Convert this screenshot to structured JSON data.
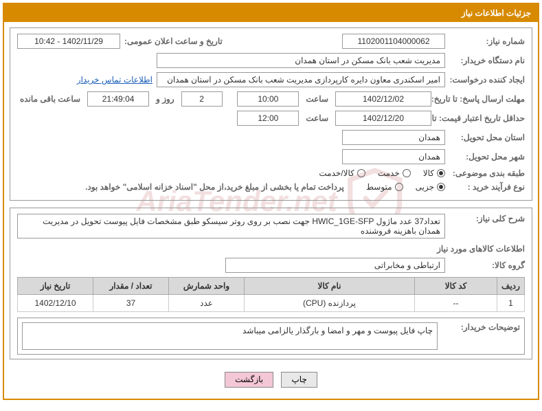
{
  "header": {
    "title": "جزئیات اطلاعات نیاز"
  },
  "fields": {
    "need_number_label": "شماره نیاز:",
    "need_number": "1102001104000062",
    "announce_datetime_label": "تاریخ و ساعت اعلان عمومی:",
    "announce_datetime": "1402/11/29 - 10:42",
    "buyer_org_label": "نام دستگاه خریدار:",
    "buyer_org": "مدیریت شعب بانک مسکن در استان همدان",
    "creator_label": "ایجاد کننده درخواست:",
    "creator": "امیر اسکندری معاون دایره کارپردازی مدیریت شعب بانک مسکن در استان همدان",
    "buyer_contact_link": "اطلاعات تماس خریدار",
    "response_deadline_label": "مهلت ارسال پاسخ: تا تاریخ:",
    "response_date": "1402/12/02",
    "saat_label": "ساعت",
    "response_time": "10:00",
    "days_count": "2",
    "rooz_va_label": "روز و",
    "remaining_time": "21:49:04",
    "remaining_label": "ساعت باقی مانده",
    "price_validity_label": "حداقل تاریخ اعتبار قیمت: تا تاریخ:",
    "price_validity_date": "1402/12/20",
    "price_validity_time": "12:00",
    "delivery_province_label": "استان محل تحویل:",
    "delivery_province": "همدان",
    "delivery_city_label": "شهر محل تحویل:",
    "delivery_city": "همدان",
    "category_label": "طبقه بندی موضوعی:",
    "cat_kala": "کالا",
    "cat_khadamat": "خدمت",
    "cat_kala_khadamat": "کالا/خدمت",
    "process_type_label": "نوع فرآیند خرید :",
    "pt_jozee": "جزیی",
    "pt_motavaset": "متوسط",
    "payment_note": "پرداخت تمام یا بخشی از مبلغ خرید،از محل \"اسناد خزانه اسلامی\" خواهد بود.",
    "summary_label": "شرح کلی نیاز:",
    "summary": "تعداد37 عدد ماژول HWIC_1GE-SFP جهت نصب بر روی روتر سیسکو طبق مشخصات فایل پیوست تحویل در مدیریت همدان باهزینه فروشنده",
    "items_info_title": "اطلاعات کالاهای مورد نیاز",
    "group_label": "گروه کالا:",
    "group": "ارتباطی و مخابراتی",
    "buyer_notes_label": "توضیحات خریدار:",
    "buyer_notes": "چاپ فایل پیوست و مهر و امضا و بارگذار یالزامی میباشد"
  },
  "table": {
    "columns": [
      "ردیف",
      "کد کالا",
      "نام کالا",
      "واحد شمارش",
      "تعداد / مقدار",
      "تاریخ نیاز"
    ],
    "rows": [
      [
        "1",
        "--",
        "پردازنده (CPU)",
        "عدد",
        "37",
        "1402/12/10"
      ]
    ],
    "col_widths": [
      "40px",
      "120px",
      "auto",
      "110px",
      "110px",
      "110px"
    ]
  },
  "buttons": {
    "print": "چاپ",
    "back": "بازگشت"
  },
  "watermark": {
    "text": "AriaTender.net"
  },
  "colors": {
    "accent": "#d78a00",
    "border": "#999999",
    "link": "#1a5db8",
    "th_bg": "#d9d9d9"
  }
}
